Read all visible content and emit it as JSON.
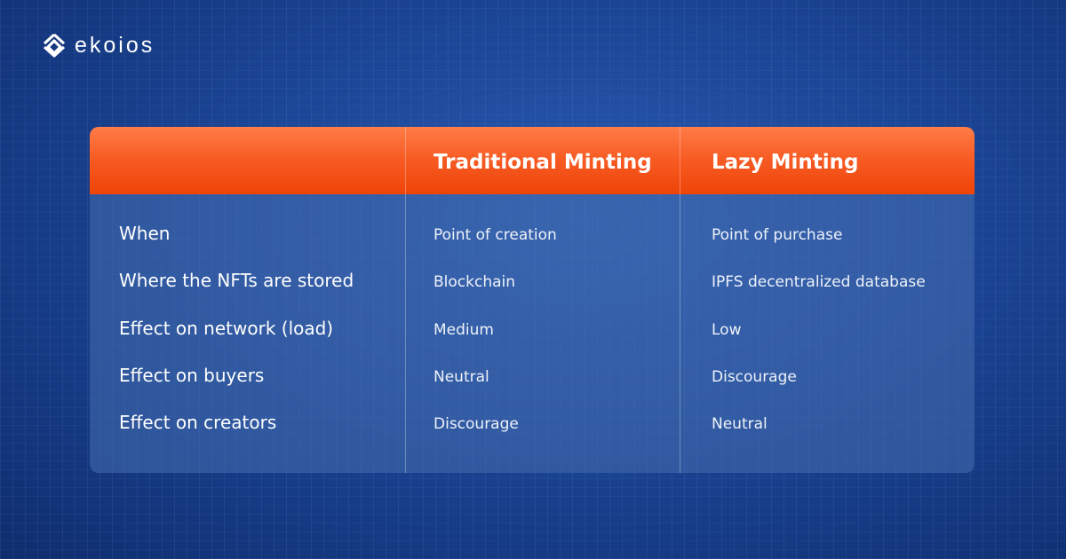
{
  "brand": {
    "name": "ekoios"
  },
  "table": {
    "headers": [
      "",
      "Traditional Minting",
      "Lazy Minting"
    ],
    "rows": [
      {
        "label": "When",
        "traditional": "Point of creation",
        "lazy": "Point of purchase"
      },
      {
        "label": "Where the NFTs are stored",
        "traditional": "Blockchain",
        "lazy": "IPFS decentralized database"
      },
      {
        "label": "Effect on network (load)",
        "traditional": "Medium",
        "lazy": "Low"
      },
      {
        "label": "Effect on buyers",
        "traditional": "Neutral",
        "lazy": "Discourage"
      },
      {
        "label": "Effect on creators",
        "traditional": "Discourage",
        "lazy": "Neutral"
      }
    ]
  },
  "colors": {
    "header": "#f65a22",
    "background": "#1b4595"
  }
}
